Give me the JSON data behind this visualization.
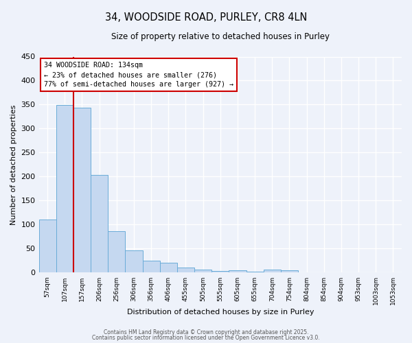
{
  "title": "34, WOODSIDE ROAD, PURLEY, CR8 4LN",
  "subtitle": "Size of property relative to detached houses in Purley",
  "xlabel": "Distribution of detached houses by size in Purley",
  "ylabel": "Number of detached properties",
  "bar_labels": [
    "57sqm",
    "107sqm",
    "157sqm",
    "206sqm",
    "256sqm",
    "306sqm",
    "356sqm",
    "406sqm",
    "455sqm",
    "505sqm",
    "555sqm",
    "605sqm",
    "655sqm",
    "704sqm",
    "754sqm",
    "804sqm",
    "854sqm",
    "904sqm",
    "953sqm",
    "1003sqm",
    "1053sqm"
  ],
  "bar_values": [
    110,
    349,
    344,
    204,
    86,
    47,
    25,
    21,
    10,
    6,
    3,
    5,
    2,
    6,
    5,
    1,
    0,
    0,
    0,
    1,
    0
  ],
  "bar_color": "#c5d8f0",
  "bar_edge_color": "#6aacd8",
  "vline_color": "#cc0000",
  "vline_pos": 1.5,
  "ylim": [
    0,
    450
  ],
  "yticks": [
    0,
    50,
    100,
    150,
    200,
    250,
    300,
    350,
    400,
    450
  ],
  "annotation_title": "34 WOODSIDE ROAD: 134sqm",
  "annotation_line1": "← 23% of detached houses are smaller (276)",
  "annotation_line2": "77% of semi-detached houses are larger (927) →",
  "annotation_box_color": "#cc0000",
  "bg_color": "#eef2fa",
  "grid_color": "#ffffff",
  "footer1": "Contains HM Land Registry data © Crown copyright and database right 2025.",
  "footer2": "Contains public sector information licensed under the Open Government Licence v3.0."
}
